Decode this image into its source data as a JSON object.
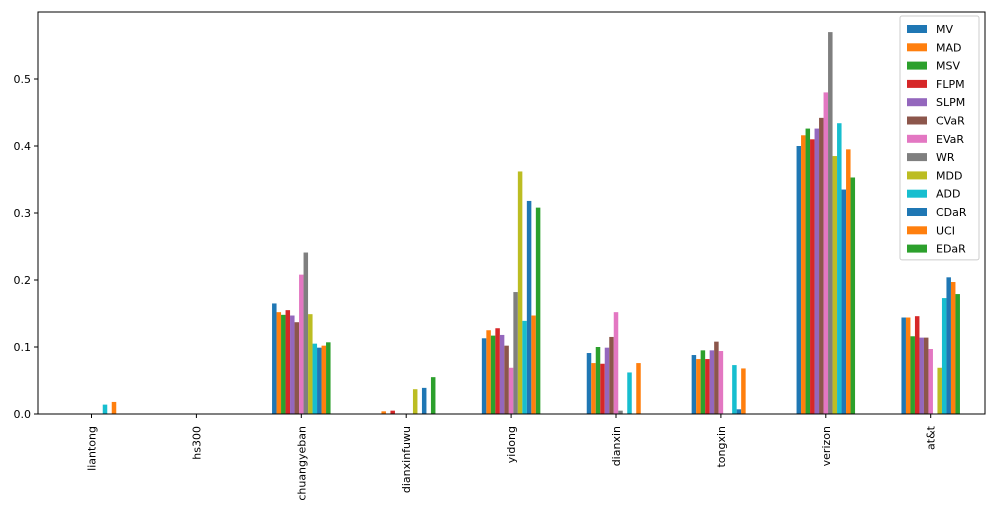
{
  "chart_data": {
    "type": "bar",
    "categories": [
      "liantong",
      "hs300",
      "chuangyeban",
      "dianxinfuwu",
      "yidong",
      "dianxin",
      "tongxin",
      "verizon",
      "at&t"
    ],
    "ylim": [
      0,
      0.6
    ],
    "yticks": [
      0.0,
      0.1,
      0.2,
      0.3,
      0.4,
      0.5
    ],
    "ytick_labels": [
      "0.0",
      "0.1",
      "0.2",
      "0.3",
      "0.4",
      "0.5"
    ],
    "grid": false,
    "legend_position": "top-right",
    "series": [
      {
        "name": "MV",
        "color": "#1f77b4",
        "values": [
          0,
          0,
          0.165,
          0,
          0.113,
          0.091,
          0.088,
          0.4,
          0.144
        ]
      },
      {
        "name": "MAD",
        "color": "#ff7f0e",
        "values": [
          0,
          0,
          0.152,
          0.004,
          0.125,
          0.076,
          0.082,
          0.416,
          0.144
        ]
      },
      {
        "name": "MSV",
        "color": "#2ca02c",
        "values": [
          0,
          0,
          0.148,
          0,
          0.117,
          0.1,
          0.095,
          0.426,
          0.116
        ]
      },
      {
        "name": "FLPM",
        "color": "#d62728",
        "values": [
          0,
          0,
          0.155,
          0.005,
          0.128,
          0.075,
          0.082,
          0.41,
          0.146
        ]
      },
      {
        "name": "SLPM",
        "color": "#9467bd",
        "values": [
          0,
          0,
          0.147,
          0,
          0.118,
          0.099,
          0.095,
          0.426,
          0.114
        ]
      },
      {
        "name": "CVaR",
        "color": "#8c564b",
        "values": [
          0,
          0,
          0.137,
          0,
          0.102,
          0.115,
          0.108,
          0.442,
          0.114
        ]
      },
      {
        "name": "EVaR",
        "color": "#e377c2",
        "values": [
          0,
          0,
          0.208,
          0,
          0.069,
          0.152,
          0.094,
          0.48,
          0.097
        ]
      },
      {
        "name": "WR",
        "color": "#7f7f7f",
        "values": [
          0,
          0,
          0.241,
          0,
          0.182,
          0.005,
          0,
          0.57,
          0
        ]
      },
      {
        "name": "MDD",
        "color": "#bcbd22",
        "values": [
          0,
          0,
          0.149,
          0.037,
          0.362,
          0,
          0,
          0.385,
          0.069
        ]
      },
      {
        "name": "ADD",
        "color": "#17becf",
        "values": [
          0.014,
          0,
          0.105,
          0,
          0.139,
          0.062,
          0.073,
          0.434,
          0.173
        ]
      },
      {
        "name": "CDaR",
        "color": "#1f77b4",
        "values": [
          0,
          0,
          0.099,
          0.039,
          0.318,
          0,
          0.007,
          0.335,
          0.204
        ]
      },
      {
        "name": "UCI",
        "color": "#ff7f0e",
        "values": [
          0.018,
          0,
          0.102,
          0,
          0.147,
          0.076,
          0.068,
          0.395,
          0.197
        ]
      },
      {
        "name": "EDaR",
        "color": "#2ca02c",
        "values": [
          0,
          0,
          0.107,
          0.055,
          0.308,
          0,
          0,
          0.353,
          0.179
        ]
      }
    ]
  }
}
